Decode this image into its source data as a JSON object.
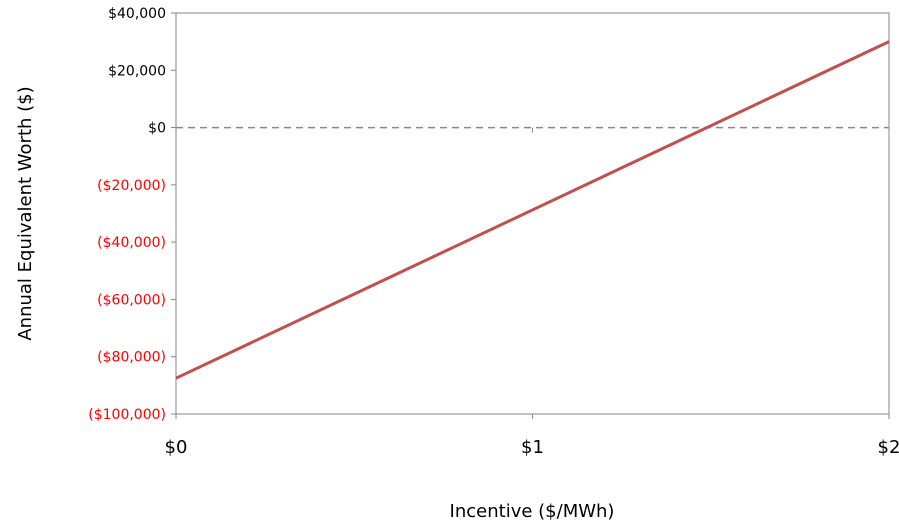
{
  "chart_data": {
    "type": "line",
    "title": "",
    "xlabel": "Incentive ($/MWh)",
    "ylabel": "Annual Equivalent Worth ($)",
    "xlim": [
      0,
      2
    ],
    "ylim": [
      -100000,
      40000
    ],
    "x_ticks": [
      {
        "value": 0,
        "label": "$0"
      },
      {
        "value": 1,
        "label": "$1"
      },
      {
        "value": 2,
        "label": "$2"
      }
    ],
    "y_ticks": [
      {
        "value": 40000,
        "label": "$40,000"
      },
      {
        "value": 20000,
        "label": "$20,000"
      },
      {
        "value": 0,
        "label": "$0"
      },
      {
        "value": -20000,
        "label": "($20,000)"
      },
      {
        "value": -40000,
        "label": "($40,000)"
      },
      {
        "value": -60000,
        "label": "($60,000)"
      },
      {
        "value": -80000,
        "label": "($80,000)"
      },
      {
        "value": -100000,
        "label": "($100,000)"
      }
    ],
    "series": [
      {
        "x": [
          0,
          2
        ],
        "y": [
          -87500,
          30000
        ]
      }
    ],
    "reference_line": {
      "y": 0,
      "style": "dashed"
    },
    "grid": false,
    "legend": "none",
    "colors": {
      "line": "#c0504d",
      "negative_tick": "#ff0000",
      "positive_tick": "#000000",
      "reference": "#888888",
      "axis": "#868686"
    }
  }
}
